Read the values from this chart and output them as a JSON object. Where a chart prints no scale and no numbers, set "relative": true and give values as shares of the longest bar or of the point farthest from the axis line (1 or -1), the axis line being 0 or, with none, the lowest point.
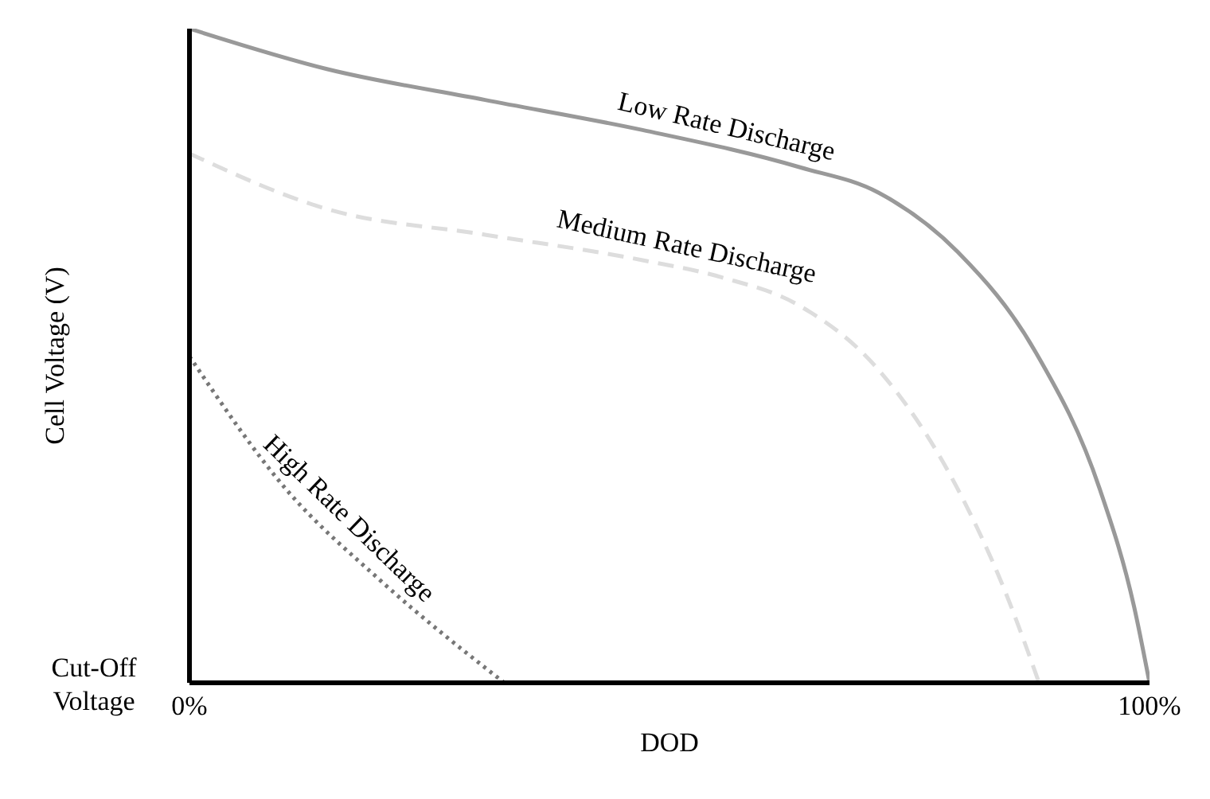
{
  "chart_data": {
    "type": "line",
    "relative": true,
    "xlabel": "DOD",
    "ylabel": "Cell Voltage (V)",
    "xlim": [
      0,
      100
    ],
    "xticks": [
      {
        "value": 0,
        "label": "0%"
      },
      {
        "value": 100,
        "label": "100%"
      }
    ],
    "annotations": [
      "Cut-Off Voltage"
    ],
    "legend": false,
    "grid": false,
    "marker": "none",
    "series": [
      {
        "name": "Low Rate Discharge",
        "color": "#999999",
        "line_style": "solid",
        "x": [
          0,
          14.4,
          30.8,
          47.2,
          63.6,
          71.8,
          80,
          88.2,
          94.8,
          98.4,
          100
        ],
        "values": [
          1,
          0.938,
          0.891,
          0.845,
          0.788,
          0.749,
          0.659,
          0.504,
          0.297,
          0.116,
          0
        ]
      },
      {
        "name": "Medium Rate Discharge",
        "color": "#dddddd",
        "line_style": "dashed",
        "x": [
          0,
          14.4,
          30.8,
          47.2,
          55.4,
          63.6,
          71.8,
          80,
          84.9,
          88.5
        ],
        "values": [
          0.809,
          0.724,
          0.685,
          0.646,
          0.62,
          0.576,
          0.478,
          0.297,
          0.142,
          0
        ]
      },
      {
        "name": "High Rate Discharge",
        "color": "#777777",
        "line_style": "dotted",
        "x": [
          0,
          10,
          20,
          32.8
        ],
        "values": [
          0.499,
          0.297,
          0.155,
          0
        ]
      }
    ]
  }
}
